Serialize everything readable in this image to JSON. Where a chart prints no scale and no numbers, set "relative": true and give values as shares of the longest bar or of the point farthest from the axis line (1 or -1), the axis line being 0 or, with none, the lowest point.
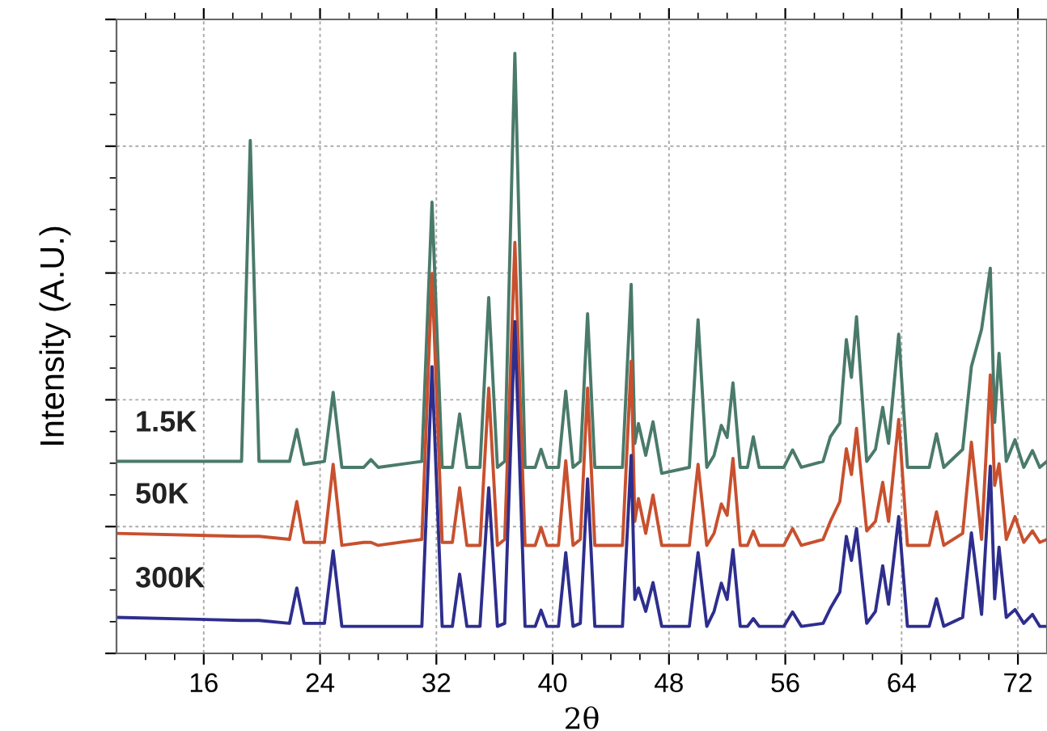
{
  "chart_data": {
    "type": "line",
    "relative": true,
    "xlabel": "2θ",
    "ylabel": "Intensity (A.U.)",
    "xlim": [
      10,
      74
    ],
    "xticks": [
      16,
      24,
      32,
      40,
      48,
      56,
      64,
      72
    ],
    "grid": true,
    "tick_labels": "x",
    "legend": false,
    "marker": "none",
    "line_style": "solid",
    "x": [
      10,
      18.6,
      19.2,
      19.8,
      21.9,
      22.4,
      22.9,
      24.3,
      24.9,
      25.5,
      27.0,
      27.5,
      28.0,
      31.0,
      31.7,
      32.4,
      33.1,
      33.6,
      34.1,
      35.0,
      35.6,
      36.2,
      36.7,
      37.4,
      38.1,
      38.8,
      39.2,
      39.6,
      40.4,
      40.9,
      41.4,
      41.9,
      42.4,
      42.9,
      44.8,
      45.4,
      45.65,
      45.9,
      46.4,
      46.9,
      47.5,
      49.4,
      50.0,
      50.6,
      51.1,
      51.6,
      52.0,
      52.4,
      52.9,
      53.4,
      53.8,
      54.2,
      55.9,
      56.5,
      57.1,
      58.6,
      59.1,
      59.75,
      60.2,
      60.55,
      60.9,
      61.6,
      62.2,
      62.7,
      63.1,
      63.8,
      64.4,
      65.9,
      66.4,
      66.9,
      68.2,
      68.8,
      69.5,
      70.1,
      70.4,
      70.7,
      71.2,
      71.8,
      72.4,
      73.0,
      73.5,
      74
    ],
    "series": [
      {
        "name": "1.5K",
        "color": "#4a7a6a",
        "values": [
          0.32,
          0.32,
          0.855,
          0.32,
          0.32,
          0.373,
          0.315,
          0.32,
          0.435,
          0.31,
          0.31,
          0.323,
          0.31,
          0.32,
          0.752,
          0.31,
          0.31,
          0.399,
          0.31,
          0.31,
          0.593,
          0.31,
          0.32,
          1,
          0.31,
          0.31,
          0.34,
          0.31,
          0.31,
          0.437,
          0.31,
          0.32,
          0.566,
          0.31,
          0.31,
          0.615,
          0.35,
          0.383,
          0.33,
          0.386,
          0.3,
          0.31,
          0.556,
          0.31,
          0.33,
          0.38,
          0.36,
          0.451,
          0.31,
          0.31,
          0.361,
          0.31,
          0.31,
          0.339,
          0.31,
          0.32,
          0.361,
          0.384,
          0.523,
          0.46,
          0.561,
          0.32,
          0.34,
          0.41,
          0.35,
          0.532,
          0.31,
          0.31,
          0.366,
          0.31,
          0.34,
          0.478,
          0.54,
          0.642,
          0.385,
          0.5,
          0.32,
          0.356,
          0.31,
          0.338,
          0.31,
          0.32
        ]
      },
      {
        "name": "50K",
        "color": "#c8502e",
        "values": [
          0.2,
          0.195,
          0.195,
          0.195,
          0.19,
          0.253,
          0.185,
          0.185,
          0.315,
          0.18,
          0.185,
          0.185,
          0.18,
          0.19,
          0.633,
          0.185,
          0.185,
          0.276,
          0.18,
          0.18,
          0.442,
          0.18,
          0.19,
          0.685,
          0.18,
          0.18,
          0.21,
          0.18,
          0.18,
          0.321,
          0.18,
          0.19,
          0.442,
          0.18,
          0.18,
          0.487,
          0.22,
          0.258,
          0.2,
          0.264,
          0.18,
          0.18,
          0.315,
          0.18,
          0.2,
          0.249,
          0.23,
          0.325,
          0.18,
          0.18,
          0.204,
          0.18,
          0.18,
          0.208,
          0.18,
          0.19,
          0.22,
          0.253,
          0.341,
          0.298,
          0.375,
          0.204,
          0.22,
          0.285,
          0.22,
          0.39,
          0.18,
          0.18,
          0.236,
          0.18,
          0.2,
          0.352,
          0.19,
          0.464,
          0.28,
          0.316,
          0.19,
          0.228,
          0.185,
          0.204,
          0.185,
          0.19
        ]
      },
      {
        "name": "300K",
        "color": "#2e2e8e",
        "values": [
          0.06,
          0.055,
          0.055,
          0.055,
          0.05,
          0.109,
          0.05,
          0.05,
          0.171,
          0.045,
          0.045,
          0.045,
          0.045,
          0.045,
          0.478,
          0.045,
          0.045,
          0.132,
          0.045,
          0.045,
          0.276,
          0.045,
          0.05,
          0.553,
          0.045,
          0.045,
          0.072,
          0.045,
          0.045,
          0.168,
          0.045,
          0.05,
          0.291,
          0.045,
          0.045,
          0.33,
          0.09,
          0.109,
          0.07,
          0.118,
          0.045,
          0.045,
          0.168,
          0.045,
          0.07,
          0.117,
          0.09,
          0.173,
          0.045,
          0.045,
          0.058,
          0.045,
          0.045,
          0.069,
          0.045,
          0.05,
          0.075,
          0.102,
          0.195,
          0.155,
          0.208,
          0.05,
          0.07,
          0.146,
          0.082,
          0.228,
          0.045,
          0.045,
          0.091,
          0.045,
          0.06,
          0.201,
          0.065,
          0.312,
          0.091,
          0.177,
          0.06,
          0.073,
          0.05,
          0.065,
          0.045,
          0.045
        ]
      }
    ]
  }
}
